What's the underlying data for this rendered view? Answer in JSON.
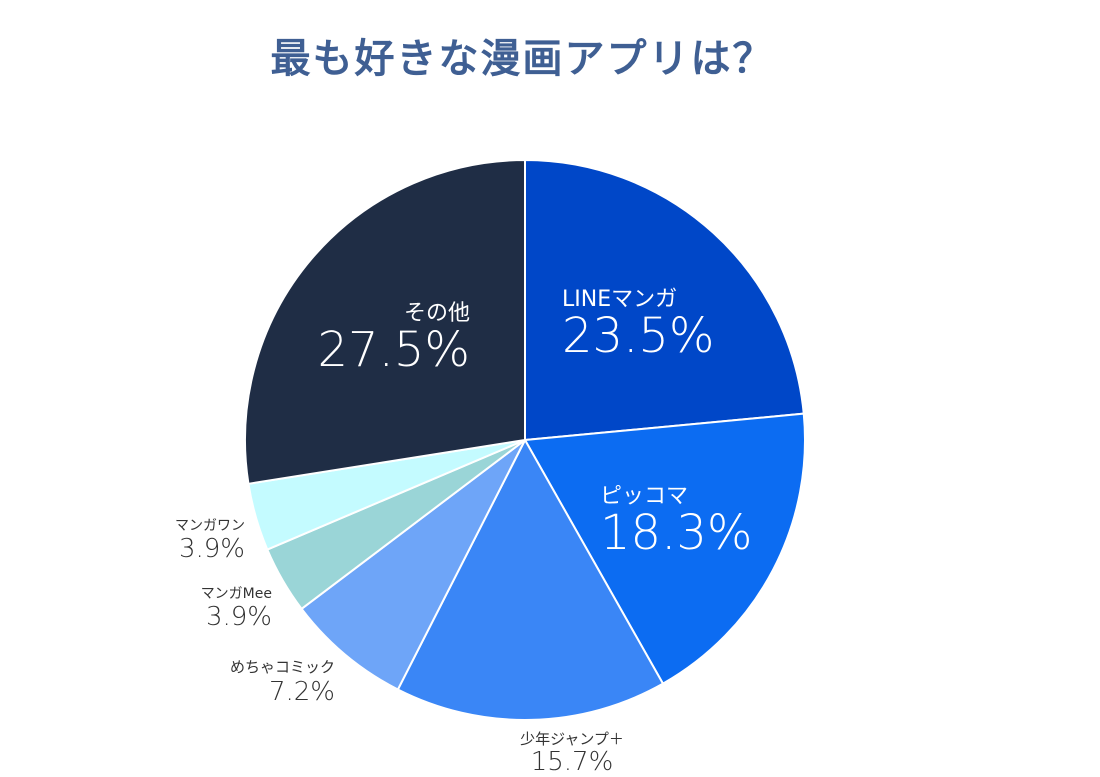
{
  "chart_data": {
    "type": "pie",
    "title": "最も好きな漫画アプリは？",
    "slices": [
      {
        "label": "LINEマンガ",
        "value": 23.5,
        "display": "23.5%",
        "color": "#0047c8"
      },
      {
        "label": "ピッコマ",
        "value": 18.3,
        "display": "18.3%",
        "color": "#0c6cf2"
      },
      {
        "label": "少年ジャンプ＋",
        "value": 15.7,
        "display": "15.7%",
        "color": "#3a86f6"
      },
      {
        "label": "めちゃコミック",
        "value": 7.2,
        "display": "7.2%",
        "color": "#6ea5f8"
      },
      {
        "label": "マンガMee",
        "value": 3.9,
        "display": "3.9%",
        "color": "#9ad5d7"
      },
      {
        "label": "マンガワン",
        "value": 3.9,
        "display": "3.9%",
        "color": "#c4fbff"
      },
      {
        "label": "その他",
        "value": 27.5,
        "display": "27.5%",
        "color": "#1f2d45"
      }
    ]
  }
}
